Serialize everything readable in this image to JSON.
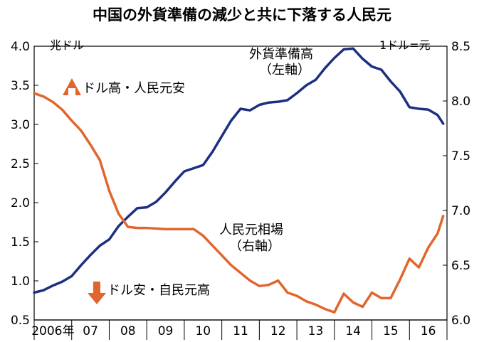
{
  "chart_data": {
    "type": "line",
    "title": "中国の外貨準備の減少と共に下落する人民元",
    "left_axis_unit": "兆ドル",
    "right_axis_unit": "1ドル=元",
    "x_tick_labels": [
      "2006年",
      "07",
      "08",
      "09",
      "10",
      "11",
      "12",
      "13",
      "14",
      "15",
      "16"
    ],
    "ylim_left": [
      0.5,
      4.0
    ],
    "ylim_right": [
      6.0,
      8.5
    ],
    "y_ticks_left": [
      "4.0",
      "3.5",
      "3.0",
      "2.5",
      "2.0",
      "1.5",
      "1.0",
      "0.5"
    ],
    "y_ticks_right": [
      "8.5",
      "8.0",
      "7.5",
      "7.0",
      "6.5",
      "6.0"
    ],
    "series": [
      {
        "name": "外貨準備高",
        "label_lines": [
          "外貨準備高",
          "（左軸）"
        ],
        "axis": "left",
        "color": "#1c2f80",
        "points": [
          [
            2006.0,
            0.85
          ],
          [
            2006.25,
            0.88
          ],
          [
            2006.5,
            0.94
          ],
          [
            2006.75,
            0.99
          ],
          [
            2007.0,
            1.06
          ],
          [
            2007.25,
            1.2
          ],
          [
            2007.5,
            1.33
          ],
          [
            2007.75,
            1.45
          ],
          [
            2008.0,
            1.53
          ],
          [
            2008.25,
            1.7
          ],
          [
            2008.5,
            1.82
          ],
          [
            2008.75,
            1.93
          ],
          [
            2009.0,
            1.94
          ],
          [
            2009.25,
            2.01
          ],
          [
            2009.5,
            2.13
          ],
          [
            2009.75,
            2.27
          ],
          [
            2010.0,
            2.4
          ],
          [
            2010.25,
            2.44
          ],
          [
            2010.5,
            2.48
          ],
          [
            2010.75,
            2.65
          ],
          [
            2011.0,
            2.85
          ],
          [
            2011.25,
            3.05
          ],
          [
            2011.5,
            3.2
          ],
          [
            2011.75,
            3.18
          ],
          [
            2012.0,
            3.25
          ],
          [
            2012.25,
            3.28
          ],
          [
            2012.5,
            3.29
          ],
          [
            2012.75,
            3.31
          ],
          [
            2013.0,
            3.4
          ],
          [
            2013.25,
            3.5
          ],
          [
            2013.5,
            3.57
          ],
          [
            2013.75,
            3.72
          ],
          [
            2014.0,
            3.85
          ],
          [
            2014.25,
            3.96
          ],
          [
            2014.5,
            3.97
          ],
          [
            2014.75,
            3.84
          ],
          [
            2015.0,
            3.74
          ],
          [
            2015.25,
            3.7
          ],
          [
            2015.5,
            3.55
          ],
          [
            2015.75,
            3.42
          ],
          [
            2016.0,
            3.22
          ],
          [
            2016.25,
            3.2
          ],
          [
            2016.5,
            3.19
          ],
          [
            2016.75,
            3.12
          ],
          [
            2016.9,
            3.01
          ]
        ]
      },
      {
        "name": "人民元相場",
        "label_lines": [
          "人民元相場",
          "（右軸）"
        ],
        "axis": "right",
        "color": "#e0662e",
        "points": [
          [
            2006.0,
            8.07
          ],
          [
            2006.25,
            8.04
          ],
          [
            2006.5,
            7.99
          ],
          [
            2006.75,
            7.92
          ],
          [
            2007.0,
            7.82
          ],
          [
            2007.25,
            7.73
          ],
          [
            2007.5,
            7.6
          ],
          [
            2007.75,
            7.46
          ],
          [
            2008.0,
            7.18
          ],
          [
            2008.25,
            6.97
          ],
          [
            2008.5,
            6.85
          ],
          [
            2008.75,
            6.84
          ],
          [
            2009.0,
            6.84
          ],
          [
            2009.5,
            6.83
          ],
          [
            2010.0,
            6.83
          ],
          [
            2010.25,
            6.83
          ],
          [
            2010.5,
            6.77
          ],
          [
            2010.75,
            6.68
          ],
          [
            2011.0,
            6.59
          ],
          [
            2011.25,
            6.5
          ],
          [
            2011.5,
            6.43
          ],
          [
            2011.75,
            6.36
          ],
          [
            2012.0,
            6.31
          ],
          [
            2012.25,
            6.32
          ],
          [
            2012.5,
            6.36
          ],
          [
            2012.75,
            6.25
          ],
          [
            2013.0,
            6.22
          ],
          [
            2013.25,
            6.17
          ],
          [
            2013.5,
            6.14
          ],
          [
            2013.75,
            6.1
          ],
          [
            2014.0,
            6.07
          ],
          [
            2014.25,
            6.24
          ],
          [
            2014.5,
            6.16
          ],
          [
            2014.75,
            6.12
          ],
          [
            2015.0,
            6.25
          ],
          [
            2015.25,
            6.2
          ],
          [
            2015.5,
            6.2
          ],
          [
            2015.75,
            6.37
          ],
          [
            2016.0,
            6.56
          ],
          [
            2016.25,
            6.48
          ],
          [
            2016.5,
            6.66
          ],
          [
            2016.75,
            6.79
          ],
          [
            2016.9,
            6.95
          ]
        ]
      }
    ],
    "annotations": {
      "up_label": "ドル高・人民元安",
      "down_label": "ドル安・自民元高"
    }
  }
}
